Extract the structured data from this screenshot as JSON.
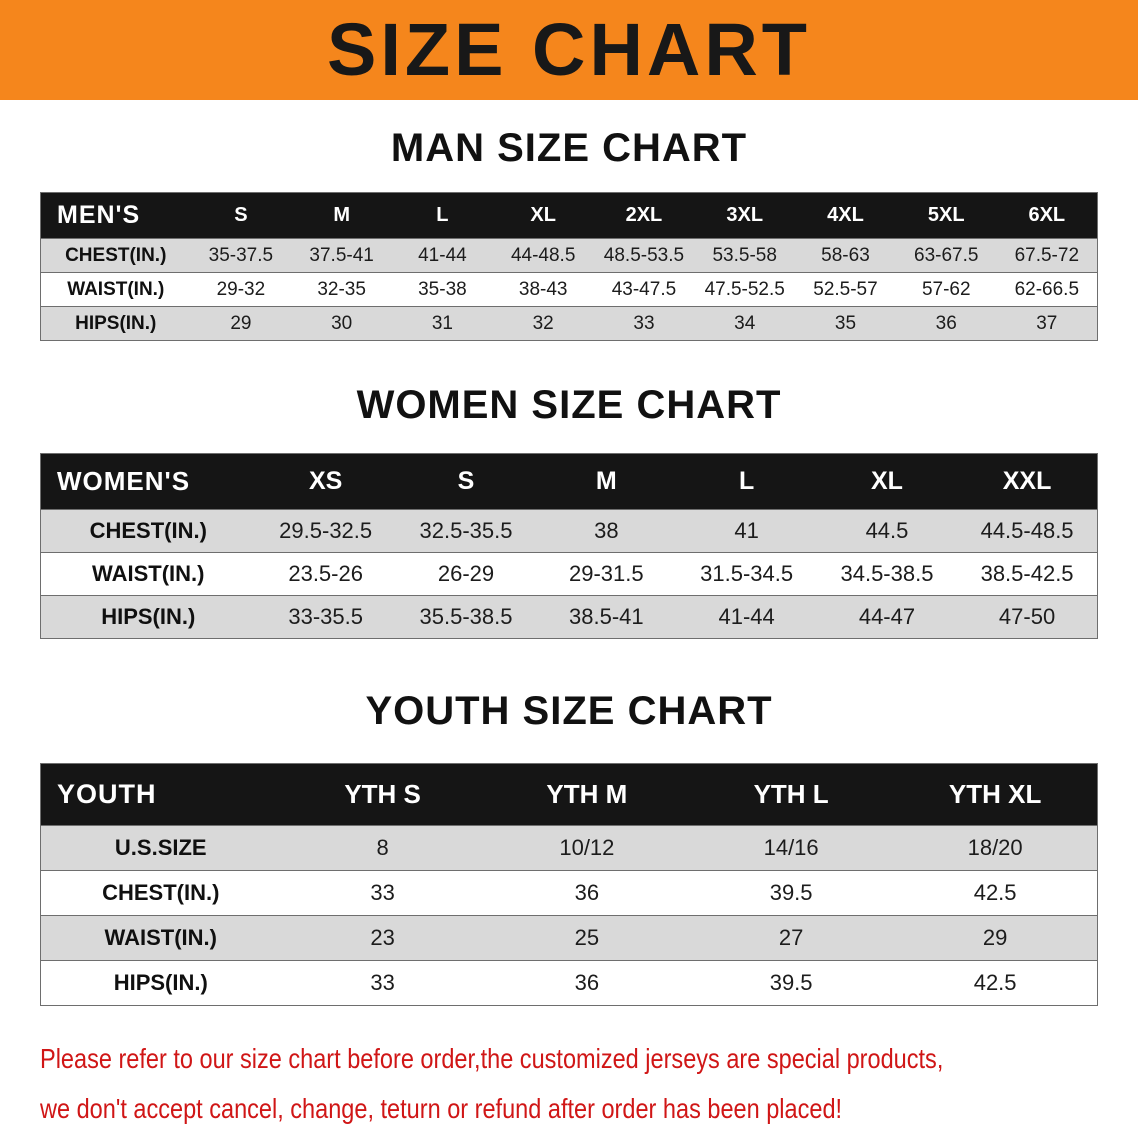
{
  "banner": {
    "title": "SIZE CHART"
  },
  "colors": {
    "banner_bg": "#f5861c",
    "banner_text": "#181818",
    "header_bg": "#151515",
    "header_text": "#ffffff",
    "row_shade": "#d9d9d9",
    "row_plain": "#ffffff",
    "cell_text": "#1c1c1c",
    "border": "#6e6e6e",
    "disclaimer_text": "#d01616"
  },
  "sections": [
    {
      "heading": "MAN SIZE CHART",
      "table": {
        "label": "MEN'S",
        "sizes": [
          "S",
          "M",
          "L",
          "XL",
          "2XL",
          "3XL",
          "4XL",
          "5XL",
          "6XL"
        ],
        "rows": [
          {
            "label": "CHEST(IN.)",
            "values": [
              "35-37.5",
              "37.5-41",
              "41-44",
              "44-48.5",
              "48.5-53.5",
              "53.5-58",
              "58-63",
              "63-67.5",
              "67.5-72"
            ]
          },
          {
            "label": "WAIST(IN.)",
            "values": [
              "29-32",
              "32-35",
              "35-38",
              "38-43",
              "43-47.5",
              "47.5-52.5",
              "52.5-57",
              "57-62",
              "62-66.5"
            ]
          },
          {
            "label": "HIPS(IN.)",
            "values": [
              "29",
              "30",
              "31",
              "32",
              "33",
              "34",
              "35",
              "36",
              "37"
            ]
          }
        ]
      }
    },
    {
      "heading": "WOMEN SIZE CHART",
      "table": {
        "label": "WOMEN'S",
        "sizes": [
          "XS",
          "S",
          "M",
          "L",
          "XL",
          "XXL"
        ],
        "rows": [
          {
            "label": "CHEST(IN.)",
            "values": [
              "29.5-32.5",
              "32.5-35.5",
              "38",
              "41",
              "44.5",
              "44.5-48.5"
            ]
          },
          {
            "label": "WAIST(IN.)",
            "values": [
              "23.5-26",
              "26-29",
              "29-31.5",
              "31.5-34.5",
              "34.5-38.5",
              "38.5-42.5"
            ]
          },
          {
            "label": "HIPS(IN.)",
            "values": [
              "33-35.5",
              "35.5-38.5",
              "38.5-41",
              "41-44",
              "44-47",
              "47-50"
            ]
          }
        ]
      }
    },
    {
      "heading": "YOUTH SIZE CHART",
      "table": {
        "label": "YOUTH",
        "sizes": [
          "YTH S",
          "YTH M",
          "YTH L",
          "YTH XL"
        ],
        "rows": [
          {
            "label": "U.S.SIZE",
            "values": [
              "8",
              "10/12",
              "14/16",
              "18/20"
            ]
          },
          {
            "label": "CHEST(IN.)",
            "values": [
              "33",
              "36",
              "39.5",
              "42.5"
            ]
          },
          {
            "label": "WAIST(IN.)",
            "values": [
              "23",
              "25",
              "27",
              "29"
            ]
          },
          {
            "label": "HIPS(IN.)",
            "values": [
              "33",
              "36",
              "39.5",
              "42.5"
            ]
          }
        ]
      }
    }
  ],
  "disclaimer": {
    "line1": "Please refer to our size chart before order,the customized jerseys are special products,",
    "line2": "we don't accept cancel, change, teturn or refund after order has been placed!"
  }
}
